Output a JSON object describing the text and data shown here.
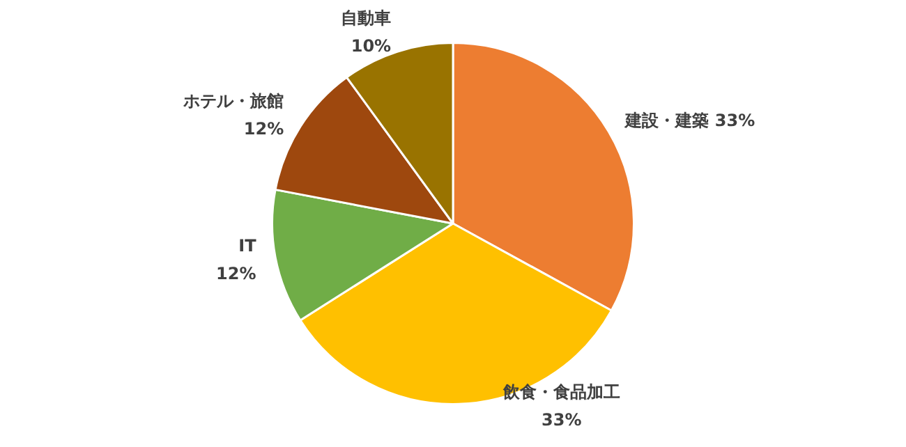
{
  "chart_data": {
    "type": "pie",
    "categories": [
      "建設・建築",
      "飲食・食品加工",
      "IT",
      "ホテル・旅館",
      "自動車"
    ],
    "values": [
      33,
      33,
      12,
      12,
      10
    ],
    "value_labels": [
      "33%",
      "33%",
      "12%",
      "12%",
      "10%"
    ],
    "colors": [
      "#ed7d31",
      "#ffc000",
      "#70ad47",
      "#9e480e",
      "#997300"
    ],
    "legend": false
  }
}
